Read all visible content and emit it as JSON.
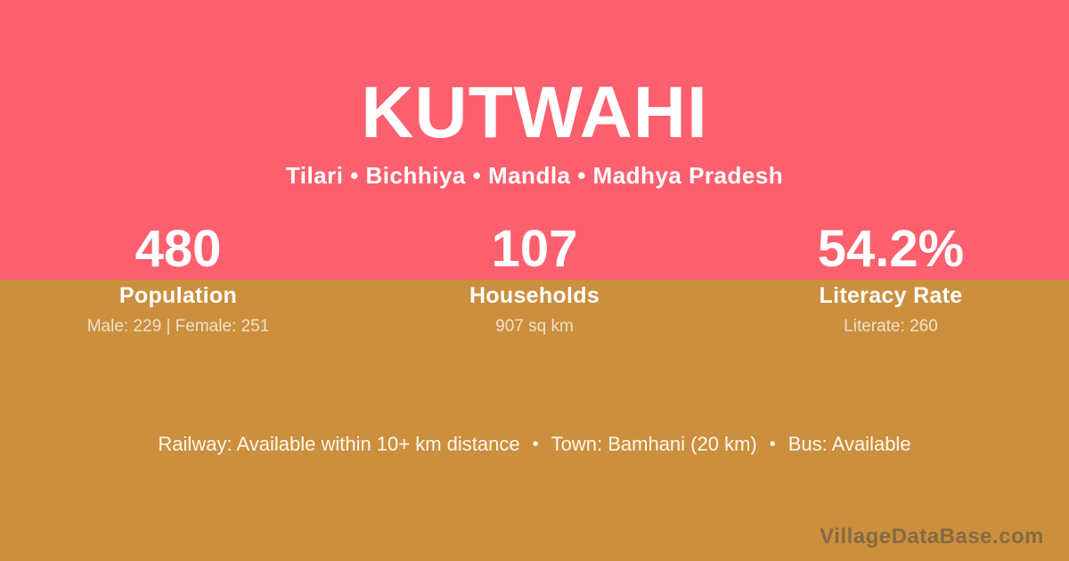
{
  "colors": {
    "top_bg": "#fc5f6d",
    "bottom_bg": "#cb8f3e",
    "heading_text": "#ffffff",
    "detail_text": "rgba(255,255,255,0.72)",
    "footer_text": "#fdf7ee",
    "watermark_text": "rgba(70,70,70,0.5)"
  },
  "header": {
    "title": "KUTWAHI",
    "subtitle": "Tilari • Bichhiya • Mandla • Madhya Pradesh"
  },
  "stats": [
    {
      "value": "480",
      "label": "Population",
      "detail": "Male: 229 | Female: 251"
    },
    {
      "value": "107",
      "label": "Households",
      "detail": "907 sq km"
    },
    {
      "value": "54.2%",
      "label": "Literacy Rate",
      "detail": "Literate: 260"
    }
  ],
  "footer": {
    "separator": "•",
    "segments": [
      "Railway: Available within 10+ km distance",
      "Town: Bamhani (20 km)",
      "Bus: Available"
    ]
  },
  "watermark": "VillageDataBase.com"
}
